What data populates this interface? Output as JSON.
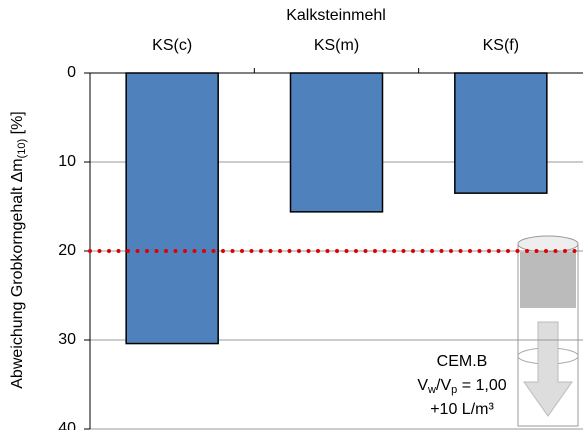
{
  "chart_data": {
    "type": "bar",
    "title": "Kalksteinmehl",
    "y_label": [
      "Abweichung Grobkorngehalt  Δm",
      "(10)",
      " [%]"
    ],
    "categories": [
      "KS(c)",
      "KS(m)",
      "KS(f)"
    ],
    "values": [
      30.4,
      15.6,
      13.5
    ],
    "color": "#4f81bd",
    "ylim": [
      0,
      40
    ],
    "yticks": [
      0,
      10,
      20,
      30,
      40
    ],
    "y_inverted": true,
    "grid": true,
    "reference_line": {
      "value": 20,
      "color": "#e00000"
    },
    "annotation": {
      "line1": "CEM.B",
      "line2": [
        "V",
        "w",
        "/V",
        "p",
        " = 1,00"
      ],
      "line3": "+10 L/m³"
    }
  }
}
